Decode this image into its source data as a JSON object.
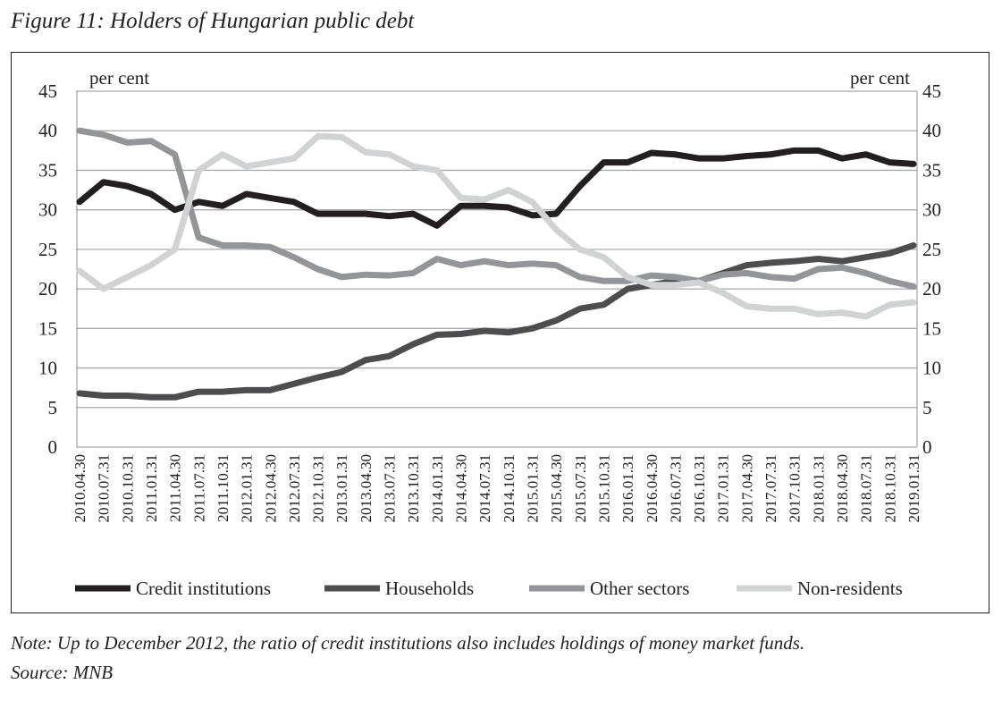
{
  "title": "Figure 11: Holders of Hungarian public debt",
  "note": "Note: Up to December 2012, the ratio of credit institutions also includes holdings of money market funds.",
  "source": "Source: MNB",
  "chart_data": {
    "type": "line",
    "ylabel_left": "per cent",
    "ylabel_right": "per cent",
    "ylim": [
      0,
      45
    ],
    "yticks": [
      0,
      5,
      10,
      15,
      20,
      25,
      30,
      35,
      40,
      45
    ],
    "grid": true,
    "legend_position": "bottom",
    "categories": [
      "2010.04.30",
      "2010.07.31",
      "2010.10.31",
      "2011.01.31",
      "2011.04.30",
      "2011.07.31",
      "2011.10.31",
      "2012.01.31",
      "2012.04.30",
      "2012.07.31",
      "2012.10.31",
      "2013.01.31",
      "2013.04.30",
      "2013.07.31",
      "2013.10.31",
      "2014.01.31",
      "2014.04.30",
      "2014.07.31",
      "2014.10.31",
      "2015.01.31",
      "2015.04.30",
      "2015.07.31",
      "2015.10.31",
      "2016.01.31",
      "2016.04.30",
      "2016.07.31",
      "2016.10.31",
      "2017.01.31",
      "2017.04.30",
      "2017.07.31",
      "2017.10.31",
      "2018.01.31",
      "2018.04.30",
      "2018.07.31",
      "2018.10.31",
      "2019.01.31"
    ],
    "series": [
      {
        "name": "Credit institutions",
        "color": "#231f20",
        "values": [
          31,
          33.5,
          33,
          32,
          30,
          31,
          30.5,
          32,
          31.5,
          31,
          29.5,
          29.5,
          29.5,
          29.2,
          29.5,
          28,
          30.5,
          30.5,
          30.3,
          29.3,
          29.5,
          33,
          36,
          36,
          37.2,
          37,
          36.5,
          36.5,
          36.8,
          37,
          37.5,
          37.5,
          36.5,
          37,
          36,
          35.8
        ]
      },
      {
        "name": "Households",
        "color": "#4d4d4f",
        "values": [
          6.8,
          6.5,
          6.5,
          6.3,
          6.3,
          7,
          7,
          7.2,
          7.2,
          8,
          8.8,
          9.5,
          11,
          11.5,
          13,
          14.2,
          14.3,
          14.7,
          14.5,
          15,
          16,
          17.5,
          18,
          20,
          20.5,
          21,
          21,
          22,
          23,
          23.3,
          23.5,
          23.8,
          23.5,
          24,
          24.5,
          25.5
        ]
      },
      {
        "name": "Other sectors",
        "color": "#939598",
        "values": [
          40,
          39.5,
          38.5,
          38.7,
          37,
          26.5,
          25.5,
          25.5,
          25.3,
          24,
          22.5,
          21.5,
          21.8,
          21.7,
          22,
          23.8,
          23,
          23.5,
          23,
          23.2,
          23,
          21.5,
          21,
          21,
          21.7,
          21.5,
          21,
          21.8,
          22,
          21.5,
          21.3,
          22.5,
          22.7,
          22,
          21,
          20.3
        ]
      },
      {
        "name": "Non-residents",
        "color": "#d1d2d4",
        "values": [
          22.3,
          20,
          21.5,
          23,
          25,
          35,
          37,
          35.5,
          36,
          36.5,
          39.3,
          39.2,
          37.3,
          37,
          35.5,
          35,
          31.5,
          31.3,
          32.5,
          31,
          27.5,
          25,
          24,
          21.5,
          20.5,
          20.5,
          20.8,
          19.5,
          17.8,
          17.5,
          17.5,
          16.8,
          17,
          16.5,
          18,
          18.3
        ]
      }
    ]
  }
}
